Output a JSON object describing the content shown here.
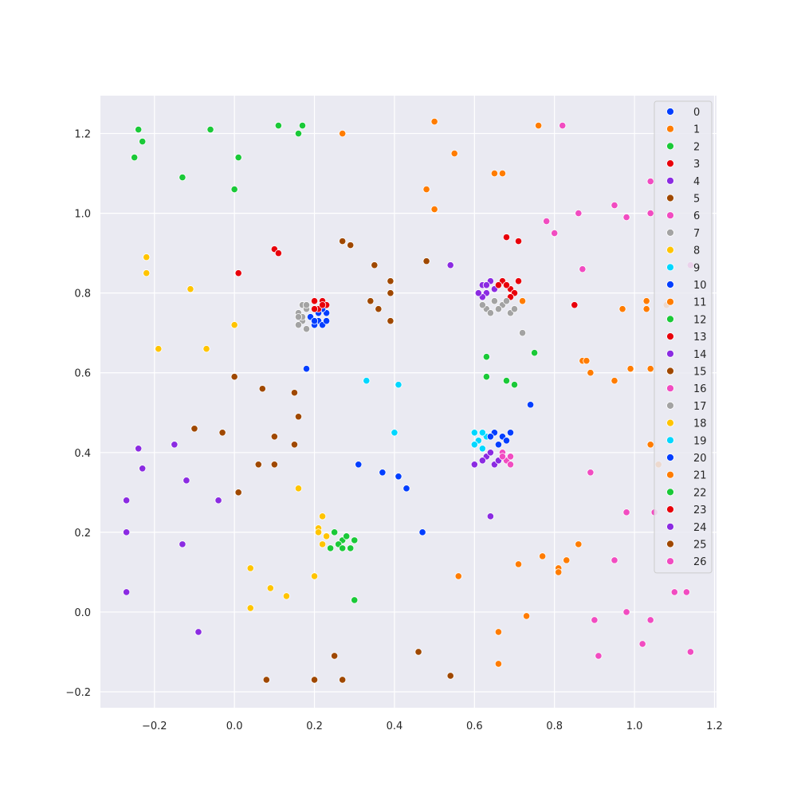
{
  "chart_data": {
    "type": "scatter",
    "title": "",
    "xlabel": "",
    "ylabel": "",
    "xlim": [
      -0.335,
      1.205
    ],
    "ylim": [
      -0.24,
      1.295
    ],
    "x_ticks": [
      -0.2,
      0.0,
      0.2,
      0.4,
      0.6,
      0.8,
      1.0,
      1.2
    ],
    "x_tick_labels": [
      "−0.2",
      "0.0",
      "0.2",
      "0.4",
      "0.6",
      "0.8",
      "1.0",
      "1.2"
    ],
    "y_ticks": [
      -0.2,
      0.0,
      0.2,
      0.4,
      0.6,
      0.8,
      1.0,
      1.2
    ],
    "y_tick_labels": [
      "−0.2",
      "0.0",
      "0.2",
      "0.4",
      "0.6",
      "0.8",
      "1.0",
      "1.2"
    ],
    "grid": true,
    "legend_position": "top-right",
    "series": [
      {
        "name": "0",
        "color": "#023eff",
        "points": [
          [
            0.23,
            0.75
          ],
          [
            0.21,
            0.73
          ],
          [
            0.22,
            0.76
          ],
          [
            0.2,
            0.72
          ],
          [
            0.19,
            0.74
          ],
          [
            0.22,
            0.72
          ],
          [
            0.23,
            0.73
          ],
          [
            0.21,
            0.75
          ],
          [
            0.2,
            0.73
          ]
        ]
      },
      {
        "name": "1",
        "color": "#ff7c00",
        "points": [
          [
            0.27,
            1.2
          ],
          [
            0.5,
            1.23
          ],
          [
            0.55,
            1.15
          ],
          [
            0.48,
            1.06
          ],
          [
            0.5,
            1.01
          ],
          [
            0.65,
            1.1
          ],
          [
            0.67,
            1.1
          ],
          [
            0.76,
            1.22
          ]
        ]
      },
      {
        "name": "2",
        "color": "#1ac938",
        "points": [
          [
            -0.24,
            1.21
          ],
          [
            -0.23,
            1.18
          ],
          [
            -0.25,
            1.14
          ],
          [
            -0.06,
            1.21
          ],
          [
            0.01,
            1.14
          ],
          [
            0.0,
            1.06
          ],
          [
            -0.13,
            1.09
          ],
          [
            0.11,
            1.22
          ],
          [
            0.17,
            1.22
          ],
          [
            0.16,
            1.2
          ]
        ]
      },
      {
        "name": "3",
        "color": "#e8000b",
        "points": [
          [
            0.1,
            0.91
          ],
          [
            0.11,
            0.9
          ],
          [
            0.01,
            0.85
          ],
          [
            0.2,
            0.78
          ],
          [
            0.22,
            0.78
          ],
          [
            0.21,
            0.76
          ],
          [
            0.23,
            0.77
          ],
          [
            0.2,
            0.76
          ],
          [
            0.22,
            0.77
          ]
        ]
      },
      {
        "name": "4",
        "color": "#8b2be2",
        "points": [
          [
            0.54,
            0.87
          ],
          [
            0.62,
            0.82
          ],
          [
            0.63,
            0.8
          ],
          [
            0.64,
            0.83
          ],
          [
            0.62,
            0.79
          ],
          [
            0.65,
            0.81
          ],
          [
            0.63,
            0.82
          ],
          [
            0.61,
            0.8
          ]
        ]
      },
      {
        "name": "5",
        "color": "#9f4800",
        "points": [
          [
            0.27,
            0.93
          ],
          [
            0.29,
            0.92
          ],
          [
            0.35,
            0.87
          ],
          [
            0.48,
            0.88
          ],
          [
            0.39,
            0.83
          ],
          [
            0.39,
            0.8
          ],
          [
            0.34,
            0.78
          ],
          [
            0.36,
            0.76
          ],
          [
            0.39,
            0.73
          ]
        ]
      },
      {
        "name": "6",
        "color": "#f14cc1",
        "points": [
          [
            0.82,
            1.22
          ],
          [
            0.78,
            0.98
          ],
          [
            0.8,
            0.95
          ],
          [
            0.86,
            1.0
          ],
          [
            0.95,
            1.02
          ],
          [
            0.98,
            0.99
          ],
          [
            1.04,
            1.08
          ],
          [
            1.04,
            1.0
          ],
          [
            0.87,
            0.86
          ]
        ]
      },
      {
        "name": "7",
        "color": "#a3a3a3",
        "points": [
          [
            0.17,
            0.77
          ],
          [
            0.16,
            0.75
          ],
          [
            0.17,
            0.73
          ],
          [
            0.18,
            0.76
          ],
          [
            0.16,
            0.72
          ],
          [
            0.17,
            0.74
          ],
          [
            0.18,
            0.71
          ],
          [
            0.16,
            0.74
          ],
          [
            0.18,
            0.77
          ]
        ]
      },
      {
        "name": "8",
        "color": "#ffc400",
        "points": [
          [
            -0.22,
            0.89
          ],
          [
            -0.22,
            0.85
          ],
          [
            -0.11,
            0.81
          ],
          [
            0.0,
            0.72
          ],
          [
            -0.19,
            0.66
          ],
          [
            -0.07,
            0.66
          ]
        ]
      },
      {
        "name": "9",
        "color": "#00d7ff",
        "points": [
          [
            0.33,
            0.58
          ],
          [
            0.41,
            0.57
          ]
        ]
      },
      {
        "name": "10",
        "color": "#023eff",
        "points": [
          [
            0.18,
            0.61
          ],
          [
            0.74,
            0.52
          ]
        ]
      },
      {
        "name": "11",
        "color": "#ff7c00",
        "points": [
          [
            0.72,
            0.78
          ],
          [
            0.97,
            0.76
          ],
          [
            1.03,
            0.76
          ],
          [
            1.03,
            0.78
          ],
          [
            0.87,
            0.63
          ],
          [
            0.88,
            0.63
          ],
          [
            0.89,
            0.6
          ],
          [
            0.99,
            0.61
          ],
          [
            1.04,
            0.61
          ],
          [
            0.95,
            0.58
          ],
          [
            1.08,
            0.77
          ]
        ]
      },
      {
        "name": "12",
        "color": "#1ac938",
        "points": [
          [
            0.63,
            0.64
          ],
          [
            0.75,
            0.65
          ],
          [
            0.63,
            0.59
          ],
          [
            0.68,
            0.58
          ],
          [
            0.7,
            0.57
          ]
        ]
      },
      {
        "name": "13",
        "color": "#e8000b",
        "points": [
          [
            0.68,
            0.94
          ],
          [
            0.71,
            0.93
          ],
          [
            0.85,
            0.77
          ],
          [
            0.67,
            0.83
          ],
          [
            0.69,
            0.81
          ],
          [
            0.7,
            0.8
          ],
          [
            0.68,
            0.82
          ],
          [
            0.71,
            0.83
          ],
          [
            0.69,
            0.79
          ],
          [
            0.66,
            0.82
          ]
        ]
      },
      {
        "name": "14",
        "color": "#8b2be2",
        "points": [
          [
            -0.24,
            0.41
          ],
          [
            -0.23,
            0.36
          ],
          [
            -0.15,
            0.42
          ],
          [
            -0.12,
            0.33
          ],
          [
            -0.04,
            0.28
          ],
          [
            -0.27,
            0.28
          ],
          [
            -0.27,
            0.2
          ],
          [
            -0.13,
            0.17
          ],
          [
            -0.27,
            0.05
          ],
          [
            -0.09,
            -0.05
          ]
        ]
      },
      {
        "name": "15",
        "color": "#9f4800",
        "points": [
          [
            0.0,
            0.59
          ],
          [
            0.07,
            0.56
          ],
          [
            0.15,
            0.55
          ],
          [
            0.16,
            0.49
          ],
          [
            -0.1,
            0.46
          ],
          [
            -0.03,
            0.45
          ],
          [
            0.1,
            0.44
          ],
          [
            0.15,
            0.42
          ],
          [
            0.06,
            0.37
          ],
          [
            0.1,
            0.37
          ],
          [
            0.01,
            0.3
          ]
        ]
      },
      {
        "name": "16",
        "color": "#f14cc1",
        "points": [
          [
            0.89,
            0.35
          ],
          [
            0.98,
            0.25
          ],
          [
            1.05,
            0.25
          ],
          [
            0.95,
            0.13
          ],
          [
            1.14,
            0.87
          ]
        ]
      },
      {
        "name": "17",
        "color": "#a3a3a3",
        "points": [
          [
            0.72,
            0.7
          ],
          [
            0.63,
            0.76
          ],
          [
            0.65,
            0.78
          ],
          [
            0.67,
            0.77
          ],
          [
            0.69,
            0.75
          ],
          [
            0.64,
            0.75
          ],
          [
            0.66,
            0.76
          ],
          [
            0.7,
            0.76
          ],
          [
            0.68,
            0.78
          ],
          [
            0.62,
            0.77
          ]
        ]
      },
      {
        "name": "18",
        "color": "#ffc400",
        "points": [
          [
            0.16,
            0.31
          ],
          [
            0.04,
            0.11
          ],
          [
            0.2,
            0.09
          ],
          [
            0.09,
            0.06
          ],
          [
            0.13,
            0.04
          ],
          [
            0.04,
            0.01
          ],
          [
            0.22,
            0.24
          ],
          [
            0.21,
            0.21
          ],
          [
            0.23,
            0.19
          ],
          [
            0.22,
            0.17
          ],
          [
            0.21,
            0.2
          ]
        ]
      },
      {
        "name": "19",
        "color": "#00d7ff",
        "points": [
          [
            0.4,
            0.45
          ],
          [
            0.6,
            0.45
          ],
          [
            0.61,
            0.43
          ],
          [
            0.62,
            0.41
          ],
          [
            0.63,
            0.44
          ],
          [
            0.6,
            0.42
          ],
          [
            0.62,
            0.45
          ]
        ]
      },
      {
        "name": "20",
        "color": "#023eff",
        "points": [
          [
            0.31,
            0.37
          ],
          [
            0.37,
            0.35
          ],
          [
            0.41,
            0.34
          ],
          [
            0.43,
            0.31
          ],
          [
            0.47,
            0.2
          ],
          [
            0.65,
            0.45
          ],
          [
            0.67,
            0.44
          ],
          [
            0.68,
            0.43
          ],
          [
            0.66,
            0.42
          ],
          [
            0.69,
            0.45
          ],
          [
            0.64,
            0.44
          ]
        ]
      },
      {
        "name": "21",
        "color": "#ff7c00",
        "points": [
          [
            0.56,
            0.09
          ],
          [
            0.77,
            0.14
          ],
          [
            0.71,
            0.12
          ],
          [
            0.81,
            0.11
          ],
          [
            0.81,
            0.1
          ],
          [
            0.83,
            0.13
          ],
          [
            0.86,
            0.17
          ],
          [
            0.66,
            -0.05
          ],
          [
            0.73,
            -0.01
          ],
          [
            0.66,
            -0.13
          ],
          [
            1.04,
            0.42
          ],
          [
            1.06,
            0.37
          ]
        ]
      },
      {
        "name": "22",
        "color": "#1ac938",
        "points": [
          [
            0.3,
            0.03
          ],
          [
            0.25,
            0.2
          ],
          [
            0.27,
            0.18
          ],
          [
            0.29,
            0.16
          ],
          [
            0.26,
            0.17
          ],
          [
            0.28,
            0.19
          ],
          [
            0.3,
            0.18
          ],
          [
            0.24,
            0.16
          ],
          [
            0.27,
            0.16
          ]
        ]
      },
      {
        "name": "23",
        "color": "#e8000b",
        "points": []
      },
      {
        "name": "24",
        "color": "#8b2be2",
        "points": [
          [
            0.64,
            0.24
          ],
          [
            0.6,
            0.37
          ],
          [
            0.63,
            0.39
          ],
          [
            0.65,
            0.37
          ],
          [
            0.64,
            0.4
          ],
          [
            0.66,
            0.38
          ],
          [
            0.62,
            0.38
          ]
        ]
      },
      {
        "name": "25",
        "color": "#9f4800",
        "points": [
          [
            0.25,
            -0.11
          ],
          [
            0.46,
            -0.1
          ],
          [
            0.54,
            -0.16
          ],
          [
            0.08,
            -0.17
          ],
          [
            0.2,
            -0.17
          ],
          [
            0.27,
            -0.17
          ]
        ]
      },
      {
        "name": "26",
        "color": "#f14cc1",
        "points": [
          [
            0.9,
            -0.02
          ],
          [
            0.98,
            0.0
          ],
          [
            1.04,
            -0.02
          ],
          [
            1.1,
            0.05
          ],
          [
            1.13,
            0.05
          ],
          [
            1.02,
            -0.08
          ],
          [
            0.91,
            -0.11
          ],
          [
            1.14,
            -0.1
          ],
          [
            0.67,
            0.4
          ],
          [
            0.68,
            0.38
          ],
          [
            0.69,
            0.37
          ],
          [
            0.67,
            0.39
          ],
          [
            0.69,
            0.39
          ]
        ]
      }
    ]
  }
}
